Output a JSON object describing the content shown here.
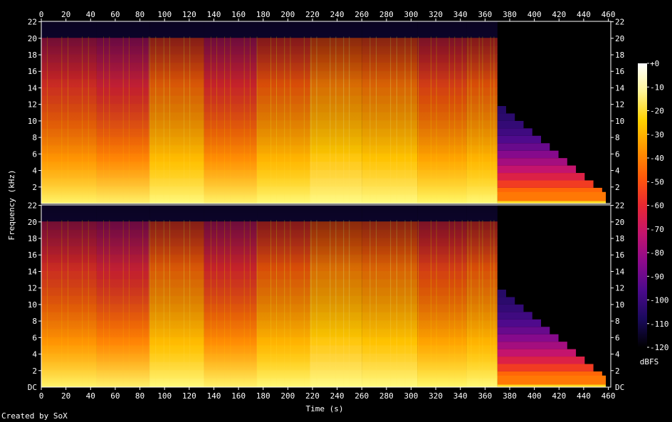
{
  "chart_data": {
    "type": "heatmap",
    "title": "",
    "xlabel": "Time (s)",
    "ylabel": "Frequency (kHz)",
    "x_ticks": [
      0,
      20,
      40,
      60,
      80,
      100,
      120,
      140,
      160,
      180,
      200,
      220,
      240,
      260,
      280,
      300,
      320,
      340,
      360,
      380,
      400,
      420,
      440,
      460
    ],
    "xlim": [
      0,
      462
    ],
    "y_ticks": [
      22,
      20,
      18,
      16,
      14,
      12,
      10,
      8,
      6,
      4,
      2
    ],
    "bottom_tick_label": "DC",
    "ylim_khz": [
      0,
      22.05
    ],
    "channels": 2,
    "audio_end_s": 370,
    "sections": [
      {
        "start": 0,
        "end": 45,
        "level": 0.62
      },
      {
        "start": 45,
        "end": 88,
        "level": 0.58
      },
      {
        "start": 88,
        "end": 132,
        "level": 0.72
      },
      {
        "start": 132,
        "end": 175,
        "level": 0.6
      },
      {
        "start": 175,
        "end": 218,
        "level": 0.7
      },
      {
        "start": 218,
        "end": 260,
        "level": 0.76
      },
      {
        "start": 260,
        "end": 305,
        "level": 0.74
      },
      {
        "start": 305,
        "end": 345,
        "level": 0.66
      },
      {
        "start": 345,
        "end": 370,
        "level": 0.7
      }
    ],
    "colorbar": {
      "unit": "dBFS",
      "ticks": [
        "+0",
        "-10",
        "-20",
        "-30",
        "-40",
        "-50",
        "-60",
        "-70",
        "-80",
        "-90",
        "-100",
        "-110",
        "-120"
      ],
      "colors": [
        "#000000",
        "#1a0a5c",
        "#4b0a8c",
        "#8c0a8c",
        "#c4146e",
        "#e82832",
        "#ff5a0a",
        "#ff9600",
        "#ffd200",
        "#fff596",
        "#ffffff"
      ]
    }
  },
  "footer": {
    "credit": "Created by SoX"
  }
}
